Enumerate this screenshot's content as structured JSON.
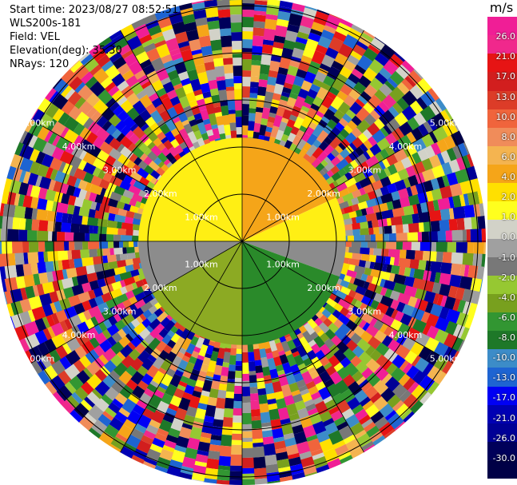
{
  "info": {
    "start_time": "Start time: 2023/08/27 08:52:51",
    "instrument": "WLS200s-181",
    "field": "Field: VEL",
    "elevation": "Elevation(deg): 35.30",
    "nrays": "NRays: 120"
  },
  "chart_data": {
    "type": "heatmap",
    "subtype": "ppi-polar",
    "field": "VEL",
    "units": "m/s",
    "range_ring_labels": [
      "1.00km",
      "2.00km",
      "3.00km",
      "4.00km",
      "5.00km"
    ],
    "range_rings_km": [
      1,
      2,
      3,
      4,
      5
    ],
    "nrays": 120,
    "colorbar": {
      "unit": "m/s",
      "ticks": [
        "26.0",
        "21.0",
        "17.0",
        "13.0",
        "10.0",
        "8.0",
        "6.0",
        "4.0",
        "2.0",
        "1.0",
        "0.0",
        "-1.0",
        "-2.0",
        "-4.0",
        "-6.0",
        "-8.0",
        "-10.0",
        "-13.0",
        "-17.0",
        "-21.0",
        "-26.0",
        "-30.0"
      ],
      "colors": [
        "#f01e96",
        "#f0288c",
        "#e61414",
        "#d21e1e",
        "#dc3c28",
        "#f0643c",
        "#f08c5a",
        "#f4b450",
        "#f5a519",
        "#ffe000",
        "#ffff1e",
        "#d2d2c8",
        "#a0a0a0",
        "#787878",
        "#96c832",
        "#78a01e",
        "#329632",
        "#1e7828",
        "#3c8cc8",
        "#1e64d2",
        "#0000f5",
        "#0000b4",
        "#000096",
        "#00005a",
        "#000046"
      ]
    },
    "inner_region_colors": {
      "yellow": "#ffef14",
      "orange": "#f5a519",
      "gray": "#8c8c8c",
      "olive": "#8caa23",
      "green": "#2a8a2a"
    }
  }
}
